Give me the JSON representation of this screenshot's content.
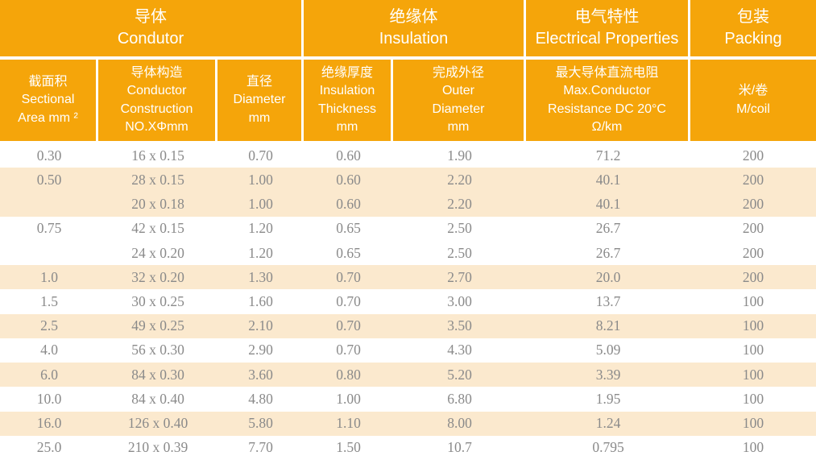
{
  "table": {
    "groups": [
      {
        "text": "导体\nCondutor"
      },
      {
        "text": "绝缘体\nInsulation"
      },
      {
        "text": "电气特性\nElectrical Properties"
      },
      {
        "text": "包装\nPacking"
      }
    ],
    "columns": [
      {
        "text": "截面积\nSectional\nArea mm ²"
      },
      {
        "text": "导体构造\nConductor\nConstruction\nNO.XΦmm"
      },
      {
        "text": "直径\nDiameter\nmm"
      },
      {
        "text": "绝缘厚度\nInsulation\nThickness\nmm"
      },
      {
        "text": "完成外径\nOuter\nDiameter\nmm"
      },
      {
        "text": "最大导体直流电阻\nMax.Conductor\nResistance DC 20°C\nΩ/km"
      },
      {
        "text": "米/卷\nM/coil"
      }
    ],
    "rows": [
      {
        "shaded": false,
        "cells": [
          "0.30",
          "16 x 0.15",
          "0.70",
          "0.60",
          "1.90",
          "71.2",
          "200"
        ]
      },
      {
        "shaded": true,
        "cells": [
          "0.50",
          "28 x 0.15",
          "1.00",
          "0.60",
          "2.20",
          "40.1",
          "200"
        ]
      },
      {
        "shaded": true,
        "cells": [
          "",
          "20 x 0.18",
          "1.00",
          "0.60",
          "2.20",
          "40.1",
          "200"
        ]
      },
      {
        "shaded": false,
        "cells": [
          "0.75",
          "42 x 0.15",
          "1.20",
          "0.65",
          "2.50",
          "26.7",
          "200"
        ]
      },
      {
        "shaded": false,
        "cells": [
          "",
          "24 x 0.20",
          "1.20",
          "0.65",
          "2.50",
          "26.7",
          "200"
        ]
      },
      {
        "shaded": true,
        "cells": [
          "1.0",
          "32 x 0.20",
          "1.30",
          "0.70",
          "2.70",
          "20.0",
          "200"
        ]
      },
      {
        "shaded": false,
        "cells": [
          "1.5",
          "30 x 0.25",
          "1.60",
          "0.70",
          "3.00",
          "13.7",
          "100"
        ]
      },
      {
        "shaded": true,
        "cells": [
          "2.5",
          "49 x 0.25",
          "2.10",
          "0.70",
          "3.50",
          "8.21",
          "100"
        ]
      },
      {
        "shaded": false,
        "cells": [
          "4.0",
          "56 x 0.30",
          "2.90",
          "0.70",
          "4.30",
          "5.09",
          "100"
        ]
      },
      {
        "shaded": true,
        "cells": [
          "6.0",
          "84 x 0.30",
          "3.60",
          "0.80",
          "5.20",
          "3.39",
          "100"
        ]
      },
      {
        "shaded": false,
        "cells": [
          "10.0",
          "84 x 0.40",
          "4.80",
          "1.00",
          "6.80",
          "1.95",
          "100"
        ]
      },
      {
        "shaded": true,
        "cells": [
          "16.0",
          "126 x 0.40",
          "5.80",
          "1.10",
          "8.00",
          "1.24",
          "100"
        ]
      },
      {
        "shaded": false,
        "cells": [
          "25.0",
          "210 x 0.39",
          "7.70",
          "1.50",
          "10.7",
          "0.795",
          "100"
        ]
      }
    ],
    "colors": {
      "header_bg": "#F5A50A",
      "stripe_bg": "#FBE9CE",
      "header_text": "#FFFFFF",
      "body_text": "#8A8A8A",
      "divider": "#FFFFFF"
    }
  }
}
